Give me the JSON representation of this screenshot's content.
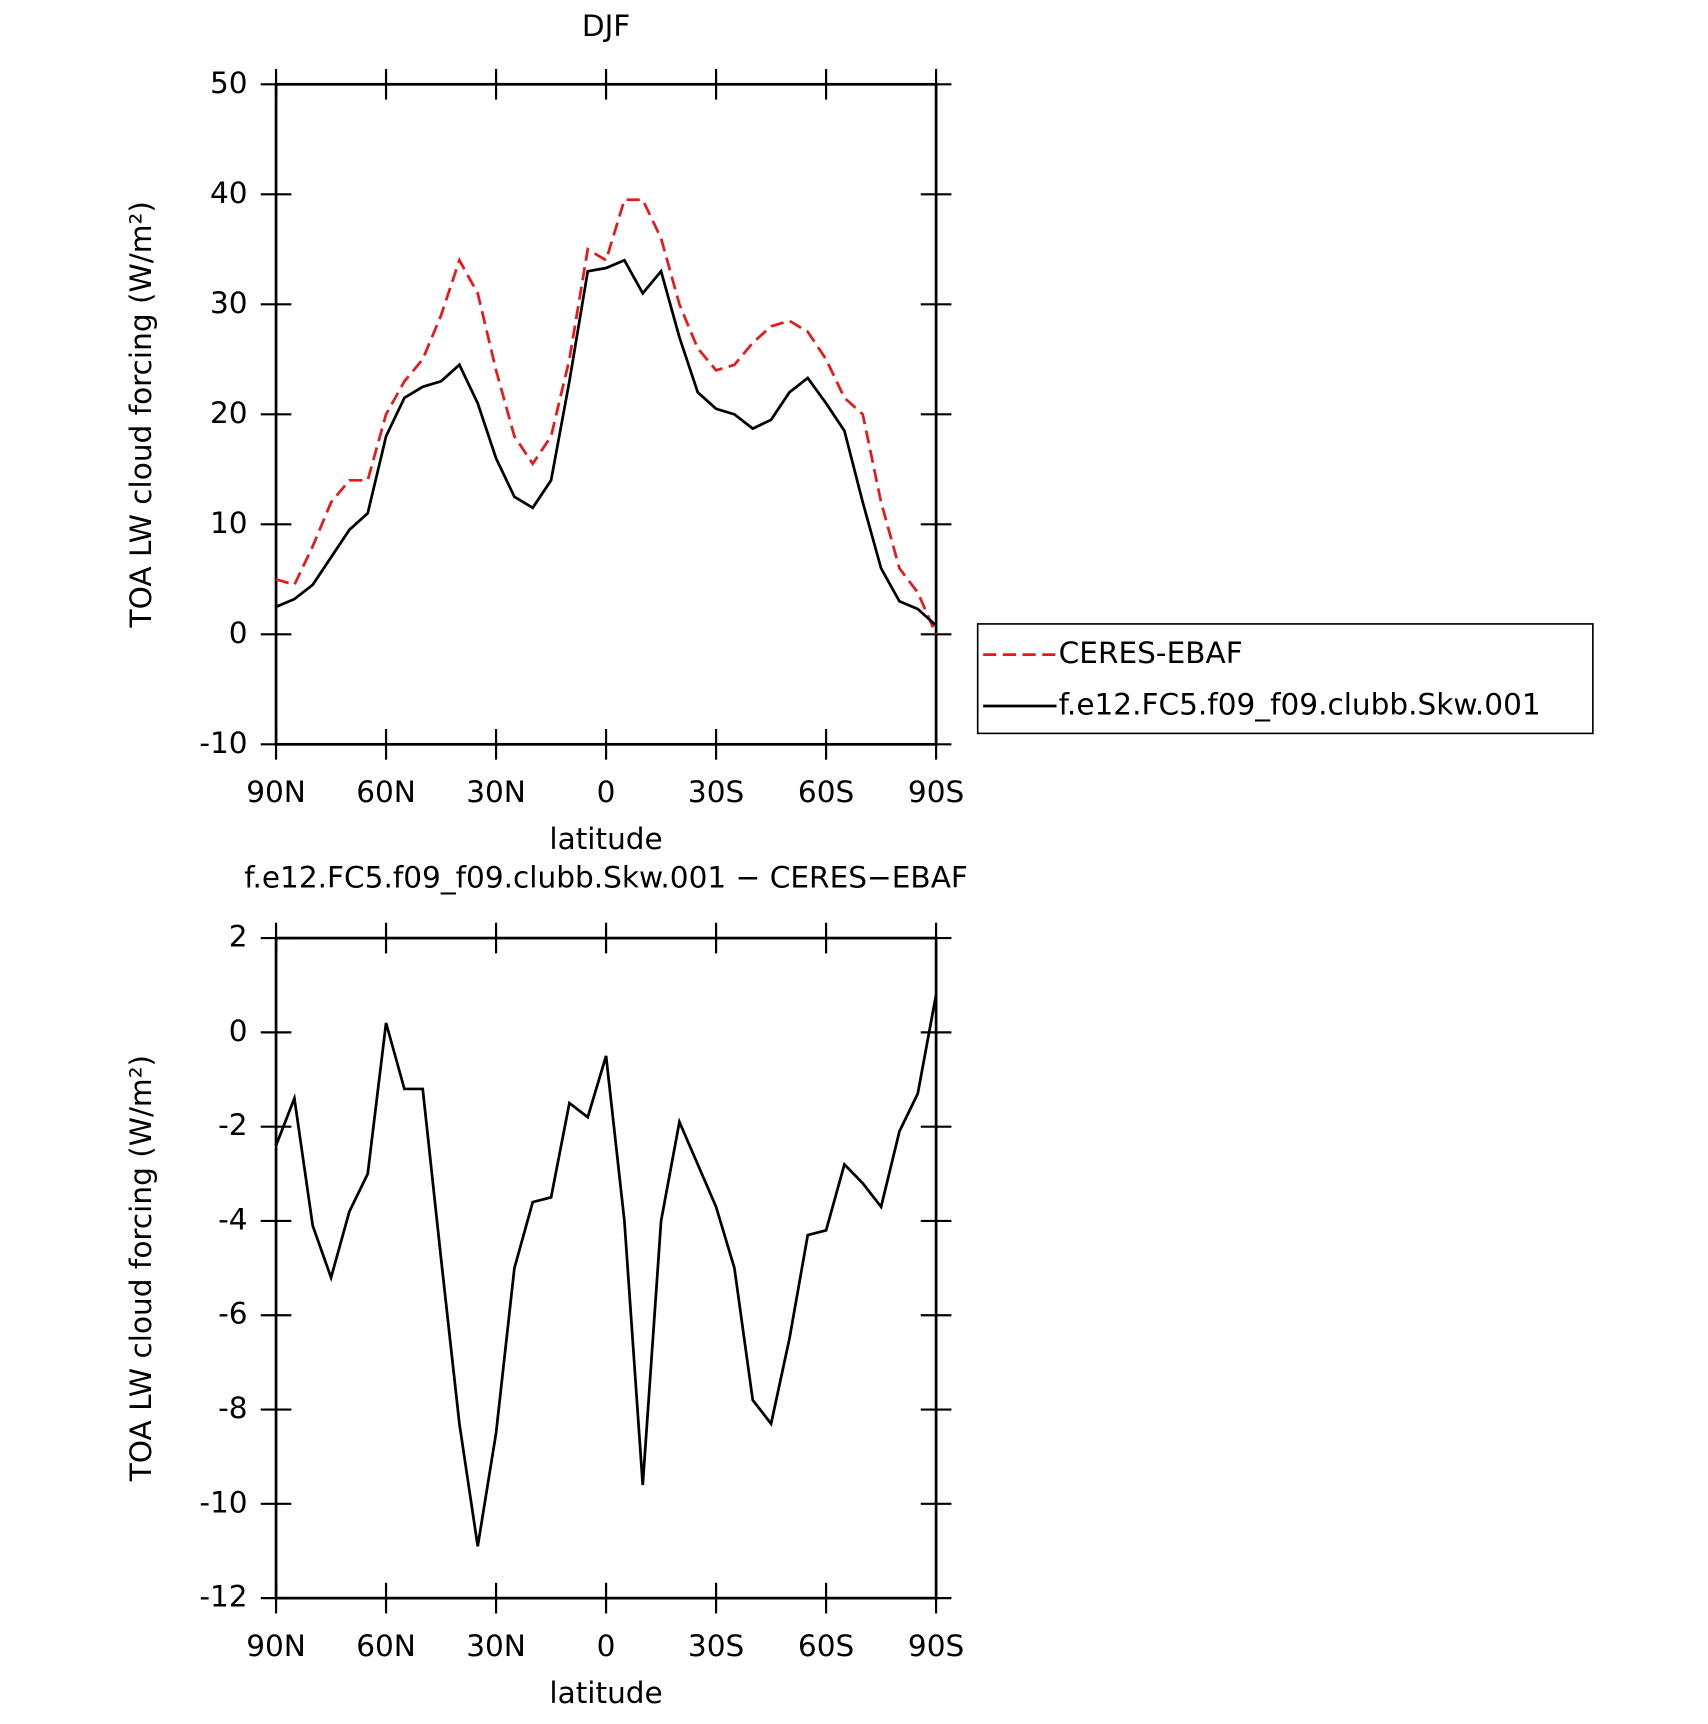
{
  "chart_data": [
    {
      "type": "line",
      "title": "DJF",
      "x_label": "latitude",
      "y_label": "TOA LW cloud forcing (W/m²)",
      "x": [
        90,
        85,
        80,
        75,
        70,
        65,
        60,
        55,
        50,
        45,
        40,
        35,
        30,
        25,
        20,
        15,
        10,
        5,
        0,
        -5,
        -10,
        -15,
        -20,
        -25,
        -30,
        -35,
        -40,
        -45,
        -50,
        -55,
        -60,
        -65,
        -70,
        -75,
        -80,
        -85,
        -90
      ],
      "xlim": [
        90,
        -90
      ],
      "xticks": [
        {
          "value": 90,
          "label": "90N"
        },
        {
          "value": 60,
          "label": "60N"
        },
        {
          "value": 30,
          "label": "30N"
        },
        0,
        {
          "value": -30,
          "label": "30S"
        },
        {
          "value": -60,
          "label": "60S"
        },
        {
          "value": -90,
          "label": "90S"
        }
      ],
      "ylim": [
        -10,
        50
      ],
      "yticks": [
        -10,
        0,
        10,
        20,
        30,
        40,
        50
      ],
      "legend": "right",
      "series": [
        {
          "name": "CERES-EBAF",
          "color": "#e8191c",
          "dash": true,
          "values": [
            5,
            4.5,
            8,
            12,
            14,
            14,
            20,
            23,
            25,
            29,
            34,
            31,
            24,
            18,
            15.5,
            18,
            25,
            35,
            34,
            39.5,
            39.5,
            36,
            30,
            26,
            24,
            24.5,
            26.5,
            28,
            28.5,
            27.5,
            25,
            21.5,
            20,
            12,
            6,
            3.8,
            0
          ]
        },
        {
          "name": "f.e12.FC5.f09_f09.clubb.Skw.001",
          "color": "#000000",
          "dash": false,
          "values": [
            2.5,
            3.2,
            4.5,
            7,
            9.5,
            11,
            18,
            21.5,
            22.5,
            23,
            24.5,
            21,
            16,
            12.5,
            11.5,
            14,
            23,
            33,
            33.3,
            34,
            31,
            33,
            27,
            22,
            20.5,
            20,
            18.7,
            19.5,
            22,
            23.3,
            21,
            18.5,
            12,
            6,
            3,
            2.3,
            0.8
          ]
        }
      ]
    },
    {
      "type": "line",
      "title": "f.e12.FC5.f09_f09.clubb.Skw.001 − CERES−EBAF",
      "x_label": "latitude",
      "y_label": "TOA LW cloud forcing (W/m²)",
      "x": [
        90,
        85,
        80,
        75,
        70,
        65,
        60,
        55,
        50,
        45,
        40,
        35,
        30,
        25,
        20,
        15,
        10,
        5,
        0,
        -5,
        -10,
        -15,
        -20,
        -25,
        -30,
        -35,
        -40,
        -45,
        -50,
        -55,
        -60,
        -65,
        -70,
        -75,
        -80,
        -85,
        -90
      ],
      "xlim": [
        90,
        -90
      ],
      "xticks": [
        {
          "value": 90,
          "label": "90N"
        },
        {
          "value": 60,
          "label": "60N"
        },
        {
          "value": 30,
          "label": "30N"
        },
        0,
        {
          "value": -30,
          "label": "30S"
        },
        {
          "value": -60,
          "label": "60S"
        },
        {
          "value": -90,
          "label": "90S"
        }
      ],
      "ylim": [
        -12,
        2
      ],
      "yticks": [
        -12,
        -10,
        -8,
        -6,
        -4,
        -2,
        0,
        2
      ],
      "series": [
        {
          "color": "#000000",
          "dash": false,
          "values": [
            -2.4,
            -1.4,
            -4.1,
            -5.2,
            -3.8,
            -3,
            0.2,
            -1.2,
            -1.2,
            -4.8,
            -8.3,
            -10.9,
            -8.5,
            -5,
            -3.6,
            -3.5,
            -1.5,
            -1.8,
            -0.5,
            -4,
            -9.6,
            -4,
            -1.9,
            -2.8,
            -3.7,
            -5,
            -7.8,
            -8.3,
            -6.5,
            -4.3,
            -4.2,
            -2.8,
            -3.2,
            -3.7,
            -2.1,
            -1.3,
            0.8
          ]
        }
      ]
    }
  ]
}
